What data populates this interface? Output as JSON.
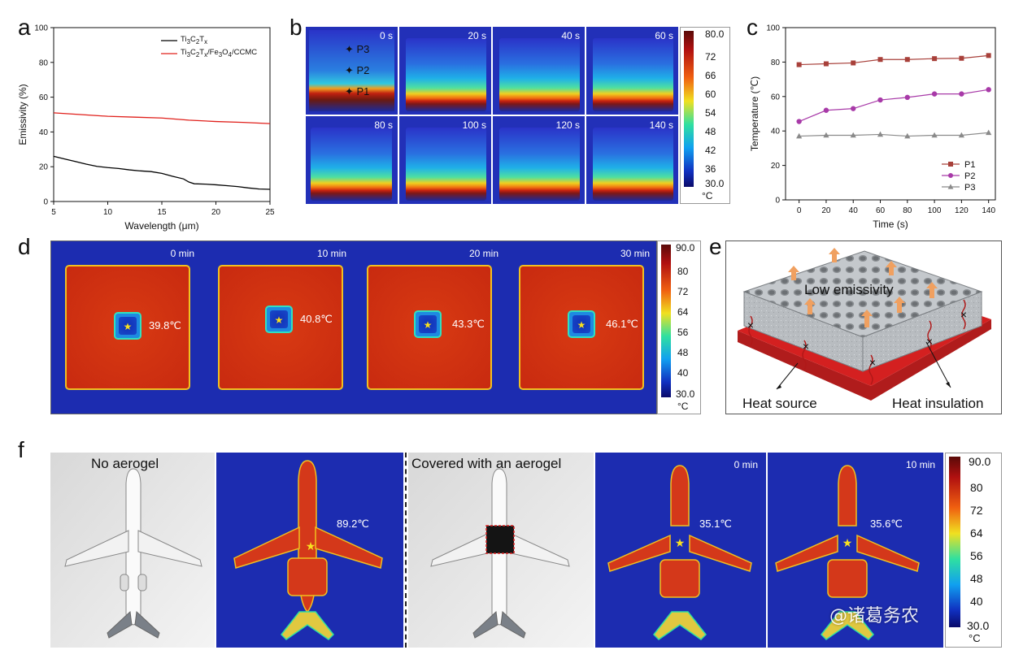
{
  "panels": {
    "a": "a",
    "b": "b",
    "c": "c",
    "d": "d",
    "e": "e",
    "f": "f"
  },
  "panel_b": {
    "times": [
      "0 s",
      "20 s",
      "40 s",
      "60 s",
      "80 s",
      "100 s",
      "120 s",
      "140 s"
    ],
    "points": [
      "P3",
      "P2",
      "P1"
    ],
    "colorbar": {
      "ticks": [
        "80.0",
        "72",
        "66",
        "60",
        "54",
        "48",
        "42",
        "36",
        "30.0"
      ],
      "unit": "°C"
    }
  },
  "panel_d": {
    "times": [
      "0 min",
      "10 min",
      "20 min",
      "30 min"
    ],
    "readouts": [
      "39.8℃",
      "40.8℃",
      "43.3℃",
      "46.1℃"
    ],
    "colorbar": {
      "ticks": [
        "90.0",
        "80",
        "72",
        "64",
        "56",
        "48",
        "40",
        "30.0"
      ],
      "unit": "°C"
    }
  },
  "panel_e": {
    "label_top": "Low emissivity",
    "label_left": "Heat source",
    "label_right": "Heat insulation"
  },
  "panel_f": {
    "label_left": "No aerogel",
    "label_right": "Covered with an aerogel",
    "readout_1": "89.2℃",
    "readout_2": "35.1℃",
    "readout_3": "35.6℃",
    "time_1": "0 min",
    "time_2": "10 min",
    "colorbar": {
      "ticks": [
        "90.0",
        "80",
        "72",
        "64",
        "56",
        "48",
        "40",
        "30.0"
      ],
      "unit": "°C"
    },
    "watermark": "@诸葛务农"
  },
  "chart_data": [
    {
      "type": "line",
      "panel": "a",
      "xlabel": "Wavelength (μm)",
      "ylabel": "Emissivity (%)",
      "xlim": [
        5,
        25
      ],
      "ylim": [
        0,
        100
      ],
      "xticks": [
        5,
        10,
        15,
        20,
        25
      ],
      "yticks": [
        0,
        20,
        40,
        60,
        80,
        100
      ],
      "legend_position": "top-right",
      "series": [
        {
          "name": "Ti3C2Tx",
          "label_html": "Ti<sub>3</sub>C<sub>2</sub>T<sub>x</sub>",
          "color": "#000000",
          "x": [
            5,
            6,
            7,
            8,
            9,
            10,
            11,
            12,
            13,
            14,
            15,
            16,
            17,
            17.5,
            18,
            19,
            20,
            21,
            22,
            23,
            24,
            25
          ],
          "y": [
            26,
            24.5,
            23,
            21.5,
            20.2,
            19.5,
            19,
            18.2,
            17.6,
            17.2,
            16.2,
            14.5,
            13,
            11.2,
            10.2,
            10,
            9.6,
            9.1,
            8.6,
            7.8,
            7.2,
            7
          ]
        },
        {
          "name": "Ti3C2Tx/Fe3O4/CCMC",
          "label_html": "Ti<sub>3</sub>C<sub>2</sub>T<sub>x</sub>/Fe<sub>3</sub>O<sub>4</sub>/CCMC",
          "color": "#e0201b",
          "x": [
            5,
            7.5,
            10,
            12.5,
            15,
            17.5,
            20,
            22.5,
            25
          ],
          "y": [
            51,
            50,
            49,
            48.5,
            48,
            46.8,
            46,
            45.5,
            44.8
          ]
        }
      ]
    },
    {
      "type": "line",
      "panel": "c",
      "xlabel": "Time (s)",
      "ylabel": "Temperature (℃)",
      "xlim": [
        -10,
        145
      ],
      "ylim": [
        0,
        100
      ],
      "xticks": [
        0,
        20,
        40,
        60,
        80,
        100,
        120,
        140
      ],
      "yticks": [
        0,
        20,
        40,
        60,
        80,
        100
      ],
      "legend_position": "bottom-right",
      "x": [
        0,
        20,
        40,
        60,
        80,
        100,
        120,
        140
      ],
      "series": [
        {
          "name": "P1",
          "color": "#a8403a",
          "marker": "square",
          "values": [
            78.5,
            79,
            79.5,
            81.5,
            81.5,
            82,
            82.2,
            83.8
          ]
        },
        {
          "name": "P2",
          "color": "#a83aa8",
          "marker": "circle",
          "values": [
            45.5,
            52,
            53,
            58,
            59.5,
            61.5,
            61.5,
            64
          ]
        },
        {
          "name": "P3",
          "color": "#8a8a8a",
          "marker": "triangle",
          "values": [
            37,
            37.5,
            37.5,
            38,
            37,
            37.5,
            37.5,
            39
          ]
        }
      ]
    }
  ]
}
